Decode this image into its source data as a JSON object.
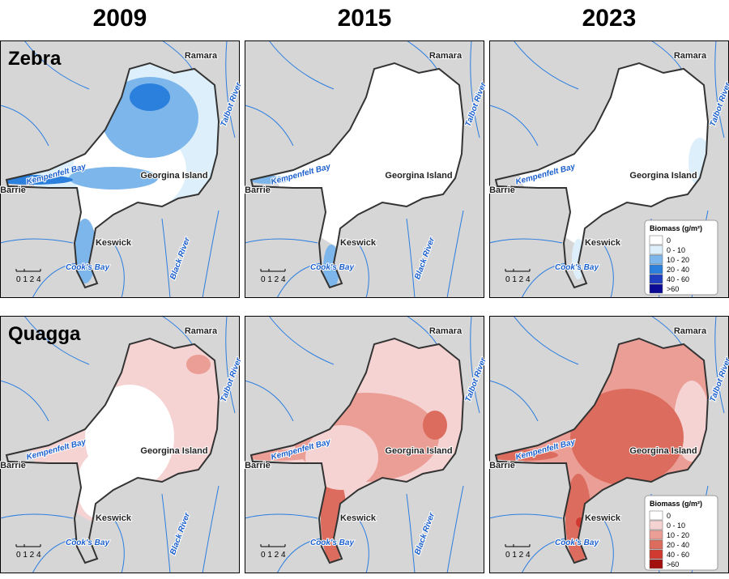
{
  "header": {
    "years": [
      "2009",
      "2015",
      "2023"
    ]
  },
  "rows": [
    {
      "label": "Zebra"
    },
    {
      "label": "Quagga"
    }
  ],
  "places": {
    "ramara": "Ramara",
    "talbot": "Talbot River",
    "kempenfelt": "Kempenfelt Bay",
    "barrie": "Barrie",
    "georgina": "Georgina Island",
    "keswick": "Keswick",
    "cooks": "Cook's Bay",
    "black": "Black River"
  },
  "scale": "0 1 2 4",
  "legends": [
    {
      "title": "Biomass (g/m²)",
      "items": [
        "0",
        "0 - 10",
        "10 - 20",
        "20 - 40",
        "40 - 60",
        ">60"
      ],
      "colors": [
        "#ffffff",
        "#dceffb",
        "#7db6ea",
        "#2a80dc",
        "#1f3fc0",
        "#0a0a96"
      ]
    },
    {
      "title": "Biomass (g/m²)",
      "items": [
        "0",
        "0 - 10",
        "10 - 20",
        "20 - 40",
        "40 - 60",
        ">60"
      ],
      "colors": [
        "#ffffff",
        "#f6d3d3",
        "#eb9e95",
        "#dc6c5d",
        "#d03a30",
        "#a30f0f"
      ]
    }
  ]
}
